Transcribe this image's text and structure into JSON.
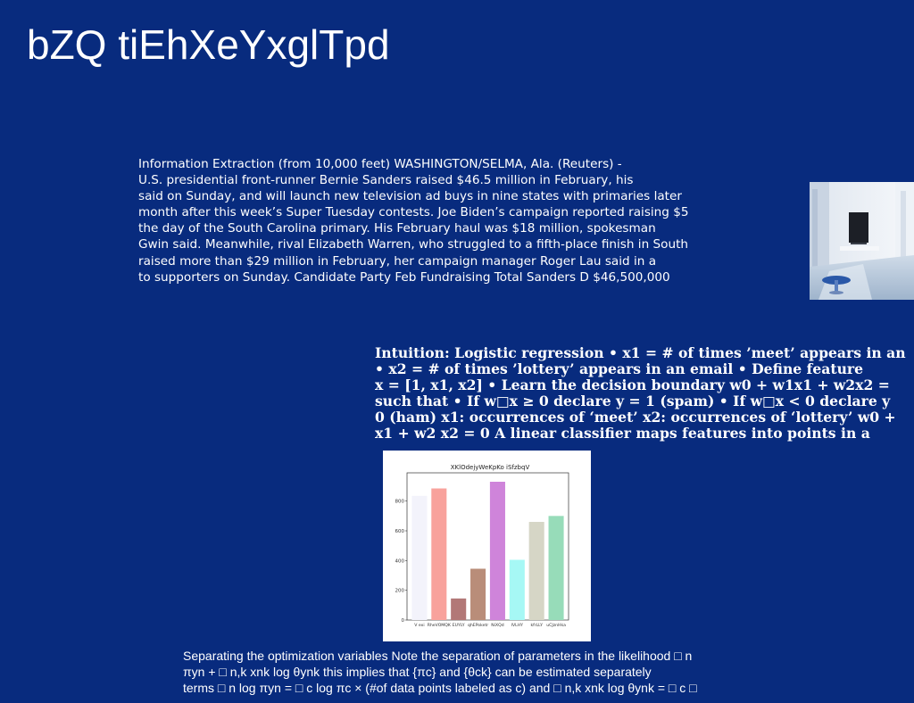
{
  "slide": {
    "title": "bZQ tiEhXeYxglTpd",
    "para1_lines": [
      "Information Extraction (from 10,000 feet) WASHINGTON/SELMA, Ala. (Reuters) -",
      "U.S. presidential front-runner Bernie Sanders raised $46.5 million in February, his",
      "said on Sunday, and will launch new television ad buys in nine states with primaries later",
      "month after this week’s Super Tuesday contests. Joe Biden’s campaign reported raising $5",
      "the day of the South Carolina primary. His February haul was $18 million, spokesman",
      "Gwin said. Meanwhile, rival Elizabeth Warren, who struggled to a fifth-place finish in South",
      "raised more than $29 million in February, her campaign manager Roger Lau said in a",
      "to supporters on Sunday. Candidate Party Feb Fundraising Total Sanders D $46,500,000"
    ],
    "para2_lines": [
      "Intuition: Logistic regression • x1 = # of times ’meet’ appears in an",
      "• x2 = # of times ’lottery’ appears in an email • Define feature",
      "x = [1, x1, x2] • Learn the decision boundary w0 + w1x1 + w2x2 =",
      "such that • If w□x ≥ 0 declare y = 1 (spam) • If w□x < 0 declare y",
      "0 (ham) x1: occurrences of ‘meet’ x2: occurrences of ‘lottery’ w0 +",
      "x1 + w2 x2 = 0 A linear classifier maps features into points in a"
    ],
    "para3_lines": [
      "Separating the optimization variables Note the separation of parameters in the likelihood □ n",
      "πyn + □ n,k xnk log θynk this implies that {πc} and {θck} can be estimated separately",
      "terms □ n log πyn = □ c log πc × (#of data points labeled as c) and □ n,k xnk log θynk = □ c □"
    ]
  },
  "chart_data": {
    "type": "bar",
    "title": "XKlOdejyWeKpKo iSfzbqV",
    "categories": [
      "V exi",
      "RheVOMQK",
      "EUYLY",
      "qhEPoketr",
      "NiXQd",
      "IVLHY",
      "kfrLLY",
      "uCJznHka"
    ],
    "values": [
      835,
      885,
      145,
      345,
      930,
      405,
      660,
      700
    ],
    "colors": [
      "#f3f3fb",
      "#f8a29c",
      "#b27877",
      "#b98d79",
      "#cf84da",
      "#a6f8f5",
      "#d6d6c6",
      "#97dcb9"
    ],
    "ylim": [
      0,
      990
    ],
    "yticks": [
      0,
      200,
      400,
      600,
      800
    ]
  }
}
